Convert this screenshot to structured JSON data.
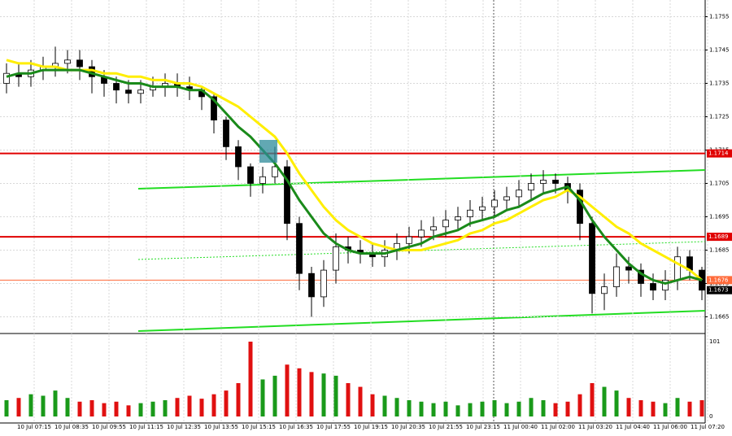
{
  "chart_data": {
    "type": "candlestick",
    "x_labels": [
      "10 Jul 07:15",
      "10 Jul 08:35",
      "10 Jul 09:55",
      "10 Jul 11:15",
      "10 Jul 12:35",
      "10 Jul 13:55",
      "10 Jul 15:15",
      "10 Jul 16:35",
      "10 Jul 17:55",
      "10 Jul 19:15",
      "10 Jul 20:35",
      "10 Jul 21:55",
      "10 Jul 23:15",
      "11 Jul 00:40",
      "11 Jul 02:00",
      "11 Jul 03:20",
      "11 Jul 04:40",
      "11 Jul 06:00",
      "11 Jul 07:20"
    ],
    "open": [
      1.1735,
      1.1738,
      1.1737,
      1.1739,
      1.174,
      1.1741,
      1.1742,
      1.174,
      1.1737,
      1.1735,
      1.1733,
      1.1732,
      1.1733,
      1.1734,
      1.1735,
      1.1734,
      1.1733,
      1.1731,
      1.1724,
      1.1716,
      1.171,
      1.1705,
      1.1707,
      1.171,
      1.1693,
      1.1678,
      1.1671,
      1.1679,
      1.1686,
      1.1685,
      1.1684,
      1.1683,
      1.1685,
      1.1687,
      1.1689,
      1.1691,
      1.1692,
      1.1694,
      1.1695,
      1.1697,
      1.1698,
      1.17,
      1.1701,
      1.1703,
      1.1705,
      1.1706,
      1.1705,
      1.1703,
      1.1693,
      1.1672,
      1.1674,
      1.168,
      1.1679,
      1.1675,
      1.1673,
      1.1676,
      1.1683,
      1.1679
    ],
    "high": [
      1.1741,
      1.1741,
      1.1742,
      1.1743,
      1.1746,
      1.1745,
      1.1745,
      1.1742,
      1.1739,
      1.1737,
      1.1736,
      1.1736,
      1.1737,
      1.1738,
      1.1738,
      1.1737,
      1.1734,
      1.1732,
      1.1725,
      1.1718,
      1.1711,
      1.171,
      1.1716,
      1.1712,
      1.1695,
      1.168,
      1.1682,
      1.169,
      1.1689,
      1.1688,
      1.1687,
      1.1688,
      1.169,
      1.1692,
      1.1694,
      1.1695,
      1.1697,
      1.1698,
      1.17,
      1.1701,
      1.1703,
      1.1704,
      1.1706,
      1.1708,
      1.1709,
      1.1708,
      1.1707,
      1.1705,
      1.1695,
      1.1678,
      1.1684,
      1.1683,
      1.1681,
      1.1678,
      1.1679,
      1.1686,
      1.1685,
      1.168
    ],
    "low": [
      1.1732,
      1.1734,
      1.1734,
      1.1736,
      1.1737,
      1.1738,
      1.1736,
      1.1732,
      1.1731,
      1.1729,
      1.1729,
      1.1729,
      1.1731,
      1.1731,
      1.1731,
      1.173,
      1.1727,
      1.172,
      1.1712,
      1.1706,
      1.1701,
      1.1702,
      1.1705,
      1.1688,
      1.1673,
      1.1665,
      1.1668,
      1.1675,
      1.1681,
      1.1681,
      1.168,
      1.168,
      1.1682,
      1.1684,
      1.1686,
      1.1688,
      1.1689,
      1.1691,
      1.1692,
      1.1694,
      1.1695,
      1.1697,
      1.1698,
      1.17,
      1.1702,
      1.1702,
      1.1699,
      1.1688,
      1.1666,
      1.1667,
      1.1671,
      1.1675,
      1.1671,
      1.167,
      1.167,
      1.1673,
      1.1676,
      1.167
    ],
    "close": [
      1.1738,
      1.1737,
      1.1739,
      1.174,
      1.1741,
      1.1742,
      1.174,
      1.1737,
      1.1735,
      1.1733,
      1.1732,
      1.1733,
      1.1734,
      1.1735,
      1.1734,
      1.1733,
      1.1731,
      1.1724,
      1.1716,
      1.171,
      1.1705,
      1.1707,
      1.171,
      1.1693,
      1.1678,
      1.1671,
      1.1679,
      1.1686,
      1.1685,
      1.1684,
      1.1683,
      1.1685,
      1.1687,
      1.1689,
      1.1691,
      1.1692,
      1.1694,
      1.1695,
      1.1697,
      1.1698,
      1.17,
      1.1701,
      1.1703,
      1.1705,
      1.1706,
      1.1705,
      1.1703,
      1.1693,
      1.1672,
      1.1674,
      1.168,
      1.1679,
      1.1675,
      1.1673,
      1.1676,
      1.1683,
      1.1679,
      1.1673
    ],
    "series": [
      {
        "color": "#ffee00",
        "values": [
          1.1742,
          1.1741,
          1.1741,
          1.174,
          1.174,
          1.1739,
          1.1739,
          1.1739,
          1.1738,
          1.1738,
          1.1737,
          1.1737,
          1.1736,
          1.1736,
          1.1735,
          1.1735,
          1.1734,
          1.1732,
          1.173,
          1.1728,
          1.1725,
          1.1722,
          1.1719,
          1.1714,
          1.1708,
          1.1703,
          1.1698,
          1.1694,
          1.1691,
          1.1689,
          1.1687,
          1.1686,
          1.1685,
          1.1685,
          1.1685,
          1.1686,
          1.1687,
          1.1688,
          1.169,
          1.1691,
          1.1693,
          1.1694,
          1.1696,
          1.1698,
          1.17,
          1.1701,
          1.1703,
          1.1701,
          1.1698,
          1.1695,
          1.1692,
          1.169,
          1.1687,
          1.1685,
          1.1683,
          1.1681,
          1.1679,
          1.1676
        ]
      },
      {
        "color": "#1a8a1a",
        "values": [
          1.1737,
          1.1738,
          1.1738,
          1.1739,
          1.1739,
          1.1739,
          1.1739,
          1.1738,
          1.1737,
          1.1736,
          1.1735,
          1.1735,
          1.1734,
          1.1734,
          1.1734,
          1.1733,
          1.1733,
          1.173,
          1.1726,
          1.1722,
          1.1719,
          1.1715,
          1.1711,
          1.1706,
          1.17,
          1.1695,
          1.169,
          1.1687,
          1.1685,
          1.1684,
          1.1684,
          1.1684,
          1.1685,
          1.1686,
          1.1687,
          1.1689,
          1.169,
          1.1691,
          1.1693,
          1.1694,
          1.1695,
          1.1697,
          1.1698,
          1.17,
          1.1702,
          1.1703,
          1.1704,
          1.17,
          1.1694,
          1.1689,
          1.1685,
          1.1681,
          1.1678,
          1.1676,
          1.1675,
          1.1676,
          1.1677,
          1.1676
        ]
      }
    ],
    "volume": [
      22,
      25,
      30,
      28,
      35,
      25,
      20,
      22,
      18,
      20,
      15,
      18,
      20,
      22,
      25,
      28,
      24,
      30,
      35,
      45,
      101,
      50,
      55,
      70,
      65,
      60,
      58,
      55,
      45,
      40,
      30,
      28,
      25,
      22,
      20,
      18,
      20,
      15,
      18,
      20,
      22,
      18,
      20,
      25,
      22,
      18,
      20,
      30,
      45,
      40,
      35,
      25,
      22,
      20,
      18,
      25,
      20,
      22
    ],
    "ylim": [
      1.166,
      1.176
    ],
    "yticks": [
      1.1665,
      1.1675,
      1.1685,
      1.1695,
      1.1705,
      1.1715,
      1.1725,
      1.1735,
      1.1745,
      1.1755
    ],
    "volume_ylim": [
      0,
      101
    ],
    "volume_ticks": [
      0,
      101
    ],
    "levels": [
      {
        "value": 1.1714,
        "color": "#e00000"
      },
      {
        "value": 1.1689,
        "color": "#e00000"
      },
      {
        "value": 1.1676,
        "color": "#ff6a3a"
      },
      {
        "value": 1.1673,
        "color": "#000000"
      }
    ],
    "grid": true
  }
}
